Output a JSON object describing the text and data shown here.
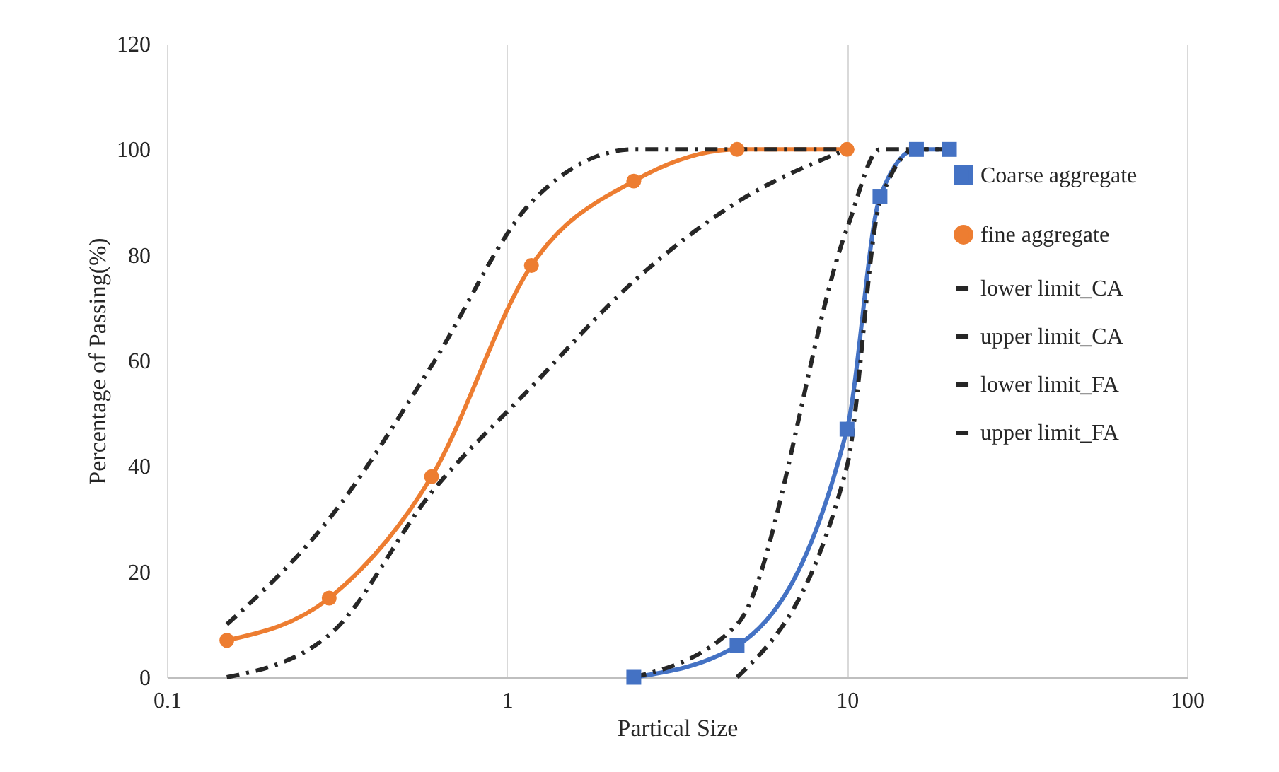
{
  "chart_data": {
    "type": "line",
    "xlabel": "Partical Size",
    "ylabel": "Percentage of Passing(%)",
    "log": "x",
    "xlim": [
      0.1,
      100
    ],
    "xticks": [
      0.1,
      1,
      10,
      100
    ],
    "ylim": [
      0,
      120
    ],
    "yticks": [
      0,
      20,
      40,
      60,
      80,
      100,
      120
    ],
    "grid": "x",
    "legend": "right",
    "series": [
      {
        "name": "Coarse aggregate",
        "color": "#4472c4",
        "marker": "square",
        "line_style": "solid",
        "x": [
          2.36,
          4.75,
          10,
          12.5,
          16,
          20
        ],
        "values": [
          0,
          6,
          47,
          91,
          100,
          100
        ]
      },
      {
        "name": "fine aggregate",
        "color": "#ed7d31",
        "marker": "circle",
        "line_style": "solid",
        "x": [
          0.15,
          0.3,
          0.6,
          1.18,
          2.36,
          4.75,
          10
        ],
        "values": [
          7,
          15,
          38,
          78,
          94,
          100,
          100
        ]
      },
      {
        "name": "lower limit_CA",
        "color": "#262626",
        "marker": "none",
        "line_style": "dashed",
        "x": [
          4.75,
          10,
          12.5,
          16,
          20
        ],
        "values": [
          0,
          40,
          90,
          100,
          100
        ]
      },
      {
        "name": "upper limit_CA",
        "color": "#262626",
        "marker": "none",
        "line_style": "dashed",
        "x": [
          2.36,
          4.75,
          10,
          12.5,
          16,
          20
        ],
        "values": [
          0,
          10,
          85,
          100,
          100,
          100
        ]
      },
      {
        "name": "lower limit_FA",
        "color": "#262626",
        "marker": "none",
        "line_style": "dashed",
        "x": [
          0.15,
          0.3,
          0.6,
          1.18,
          2.36,
          4.75,
          10
        ],
        "values": [
          0,
          8,
          35,
          55,
          75,
          90,
          100
        ]
      },
      {
        "name": "upper limit_FA",
        "color": "#262626",
        "marker": "none",
        "line_style": "dashed",
        "x": [
          0.15,
          0.3,
          0.6,
          1.18,
          2.36,
          4.75,
          10
        ],
        "values": [
          10,
          30,
          59,
          90,
          100,
          100,
          100
        ]
      }
    ]
  }
}
